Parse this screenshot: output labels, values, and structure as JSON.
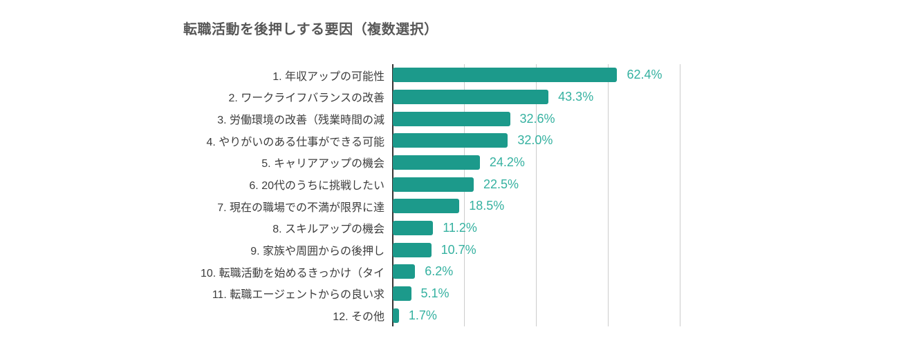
{
  "chart_data": {
    "type": "bar",
    "orientation": "horizontal",
    "title": "転職活動を後押しする要因（複数選択）",
    "categories": [
      "1. 年収アップの可能性",
      "2. ワークライフバランスの改善",
      "3. 労働環境の改善（残業時間の減",
      "4. やりがいのある仕事ができる可能",
      "5. キャリアアップの機会",
      "6. 20代のうちに挑戦したい",
      "7. 現在の職場での不満が限界に達",
      "8. スキルアップの機会",
      "9. 家族や周囲からの後押し",
      "10. 転職活動を始めるきっかけ（タイ",
      "11. 転職エージェントからの良い求",
      "12. その他"
    ],
    "values": [
      62.4,
      43.3,
      32.6,
      32.0,
      24.2,
      22.5,
      18.5,
      11.2,
      10.7,
      6.2,
      5.1,
      1.7
    ],
    "display_values": [
      "62.4%",
      "43.3%",
      "32.6%",
      "32.0%",
      "24.2%",
      "22.5%",
      "18.5%",
      "11.2%",
      "10.7%",
      "6.2%",
      "5.1%",
      "1.7%"
    ],
    "xlabel": "",
    "ylabel": "",
    "axis": {
      "min": 0,
      "max": 80,
      "ticks": [
        0,
        20,
        40,
        60,
        80
      ],
      "tick_labels_visible": false
    },
    "grid": "vertical-lines",
    "legend": "none",
    "colors": {
      "bar": "#1c9a8b",
      "value_label": "#35b1a0",
      "title_text": "#575757",
      "category_text": "#3c3c3c",
      "gridline": "#cccccc",
      "axis_line": "#333333",
      "background": "#ffffff"
    }
  }
}
